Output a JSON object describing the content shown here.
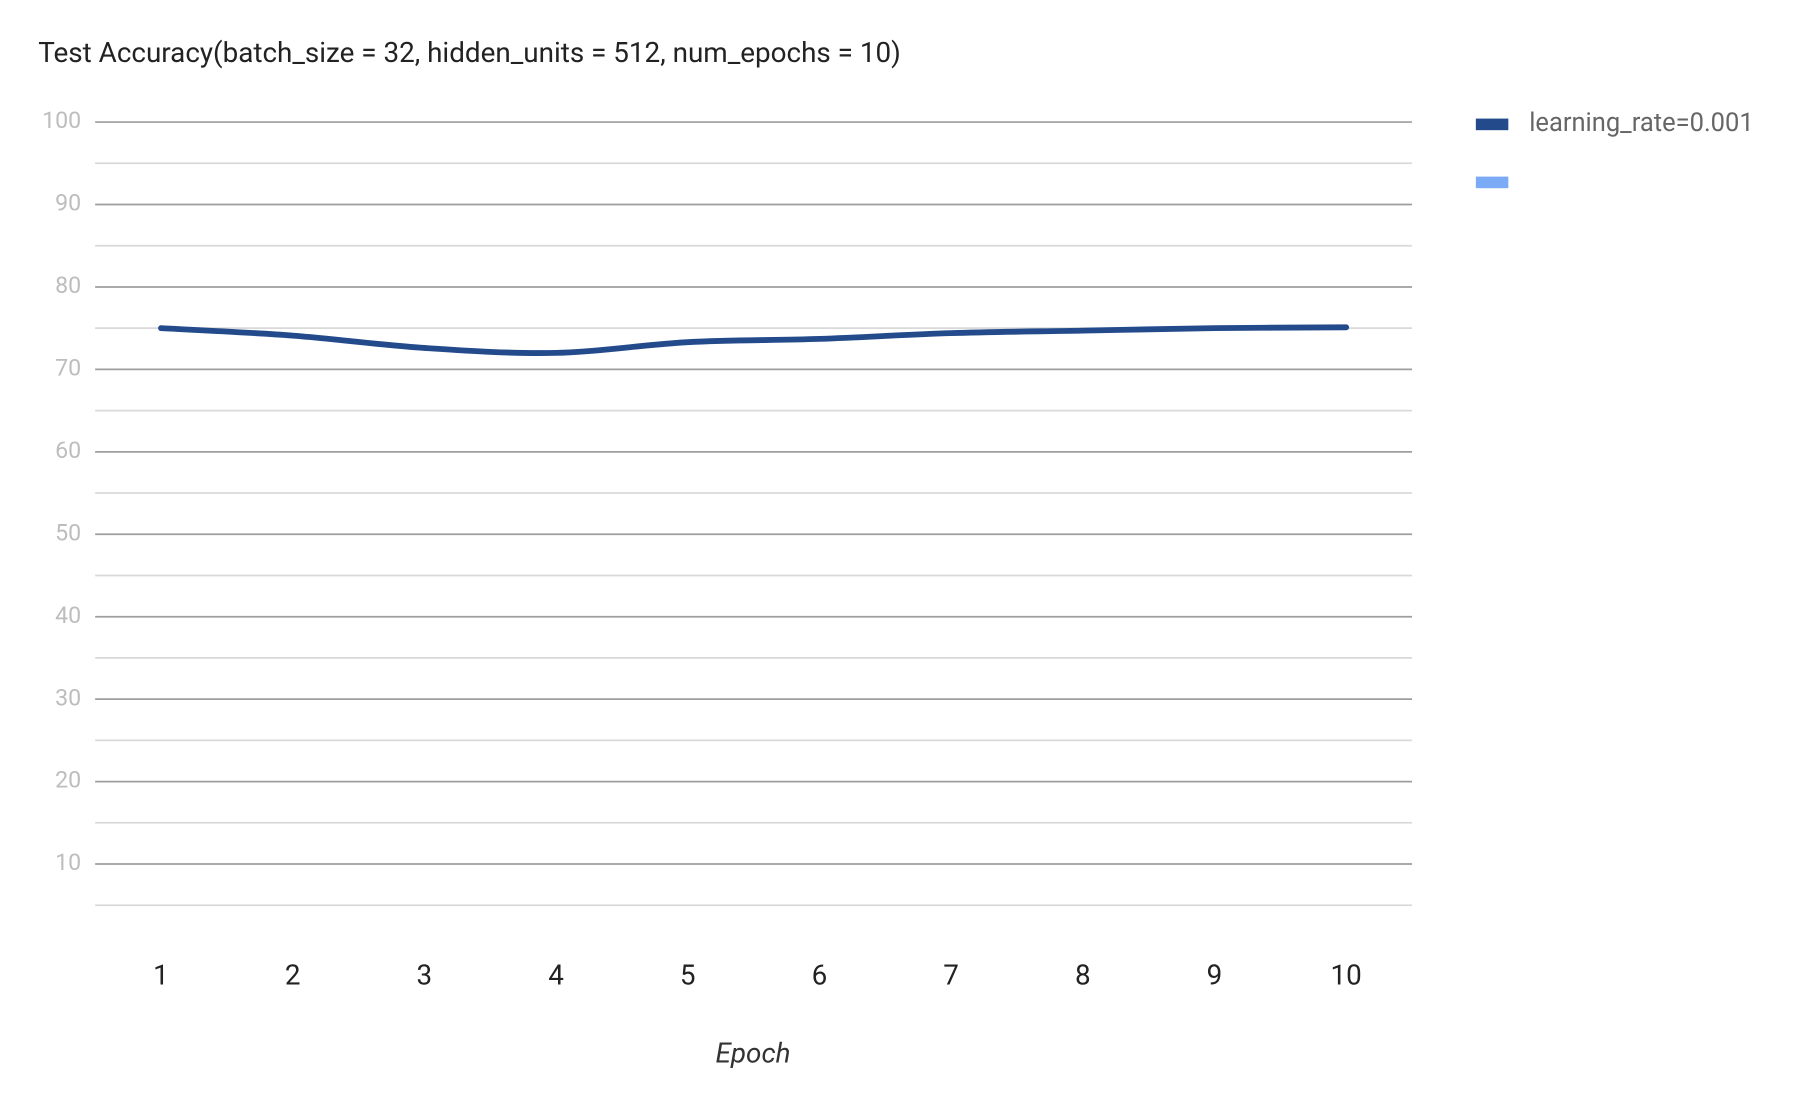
{
  "chart_data": {
    "type": "line",
    "title": "Test Accuracy(batch_size = 32, hidden_units = 512, num_epochs = 10)",
    "x_label": "Epoch",
    "categories": [
      "1",
      "2",
      "3",
      "4",
      "5",
      "6",
      "7",
      "8",
      "9",
      "10"
    ],
    "series": [
      {
        "name": "learning_rate=0.001",
        "color": "#234a8b",
        "values": [
          75.0,
          74.1,
          72.6,
          72.0,
          73.3,
          73.7,
          74.4,
          74.7,
          75.0,
          75.1
        ]
      },
      {
        "color": "#7baaf7"
      }
    ],
    "ylim": [
      5,
      100
    ],
    "yticks": [
      10,
      20,
      30,
      40,
      50,
      60,
      70,
      80,
      90,
      100
    ],
    "minor_yticks": [
      5,
      15,
      25,
      35,
      45,
      55,
      65,
      75,
      85,
      95
    ],
    "grid": true,
    "smooth": true,
    "legend": "right"
  }
}
